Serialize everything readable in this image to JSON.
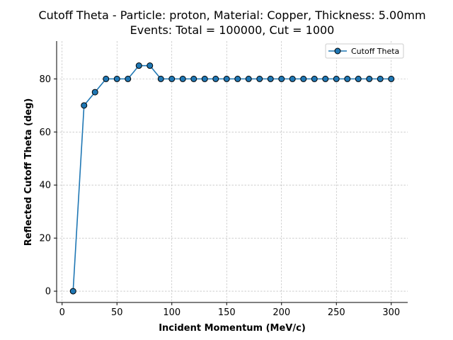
{
  "chart_data": {
    "type": "line",
    "title": "Cutoff Theta - Particle: proton, Material: Copper, Thickness: 5.00mm",
    "subtitle": "Events: Total = 100000, Cut = 1000",
    "xlabel": "Incident Momentum (MeV/c)",
    "ylabel": "Reflected Cutoff Theta (deg)",
    "xlim": [
      -5,
      315
    ],
    "ylim": [
      -4.25,
      94.25
    ],
    "xticks": [
      0,
      50,
      100,
      150,
      200,
      250,
      300
    ],
    "yticks": [
      0,
      20,
      40,
      60,
      80
    ],
    "grid": true,
    "legend_position": "top-right",
    "series": [
      {
        "name": "Cutoff Theta",
        "color": "#1f77b4",
        "marker": "circle",
        "x": [
          10,
          20,
          30,
          40,
          50,
          60,
          70,
          80,
          90,
          100,
          110,
          120,
          130,
          140,
          150,
          160,
          170,
          180,
          190,
          200,
          210,
          220,
          230,
          240,
          250,
          260,
          270,
          280,
          290,
          300
        ],
        "y": [
          0,
          70,
          75,
          80,
          80,
          80,
          85,
          85,
          80,
          80,
          80,
          80,
          80,
          80,
          80,
          80,
          80,
          80,
          80,
          80,
          80,
          80,
          80,
          80,
          80,
          80,
          80,
          80,
          80,
          80
        ]
      }
    ]
  }
}
